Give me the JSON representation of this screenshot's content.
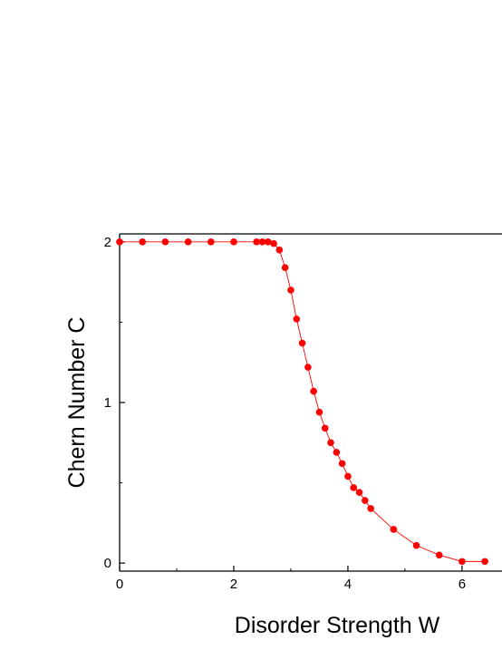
{
  "chart_data": {
    "type": "line",
    "xlabel": "Disorder Strength W",
    "ylabel": "Chern Number C",
    "xlim": [
      0,
      6.7
    ],
    "ylim": [
      -0.05,
      2.05
    ],
    "x_ticks": [
      "0",
      "2",
      "4",
      "6"
    ],
    "y_ticks": [
      "0",
      "1",
      "2"
    ],
    "grid": false,
    "marker_color": "#ff0000",
    "line_color": "#ff0000",
    "series": [
      {
        "x": [
          0,
          0.4,
          0.8,
          1.2,
          1.6,
          2.0,
          2.4,
          2.5,
          2.6,
          2.7,
          2.8,
          2.9,
          3.0,
          3.1,
          3.2,
          3.3,
          3.4,
          3.5,
          3.6,
          3.7,
          3.8,
          3.9,
          4.0,
          4.1,
          4.2,
          4.3,
          4.4,
          4.8,
          5.2,
          5.6,
          6.0,
          6.4
        ],
        "y": [
          2.0,
          2.0,
          2.0,
          2.0,
          2.0,
          2.0,
          2.0,
          2.0,
          2.0,
          1.99,
          1.95,
          1.84,
          1.7,
          1.52,
          1.37,
          1.22,
          1.07,
          0.94,
          0.84,
          0.75,
          0.69,
          0.62,
          0.54,
          0.47,
          0.44,
          0.39,
          0.34,
          0.21,
          0.11,
          0.05,
          0.01,
          0.01
        ]
      }
    ]
  }
}
